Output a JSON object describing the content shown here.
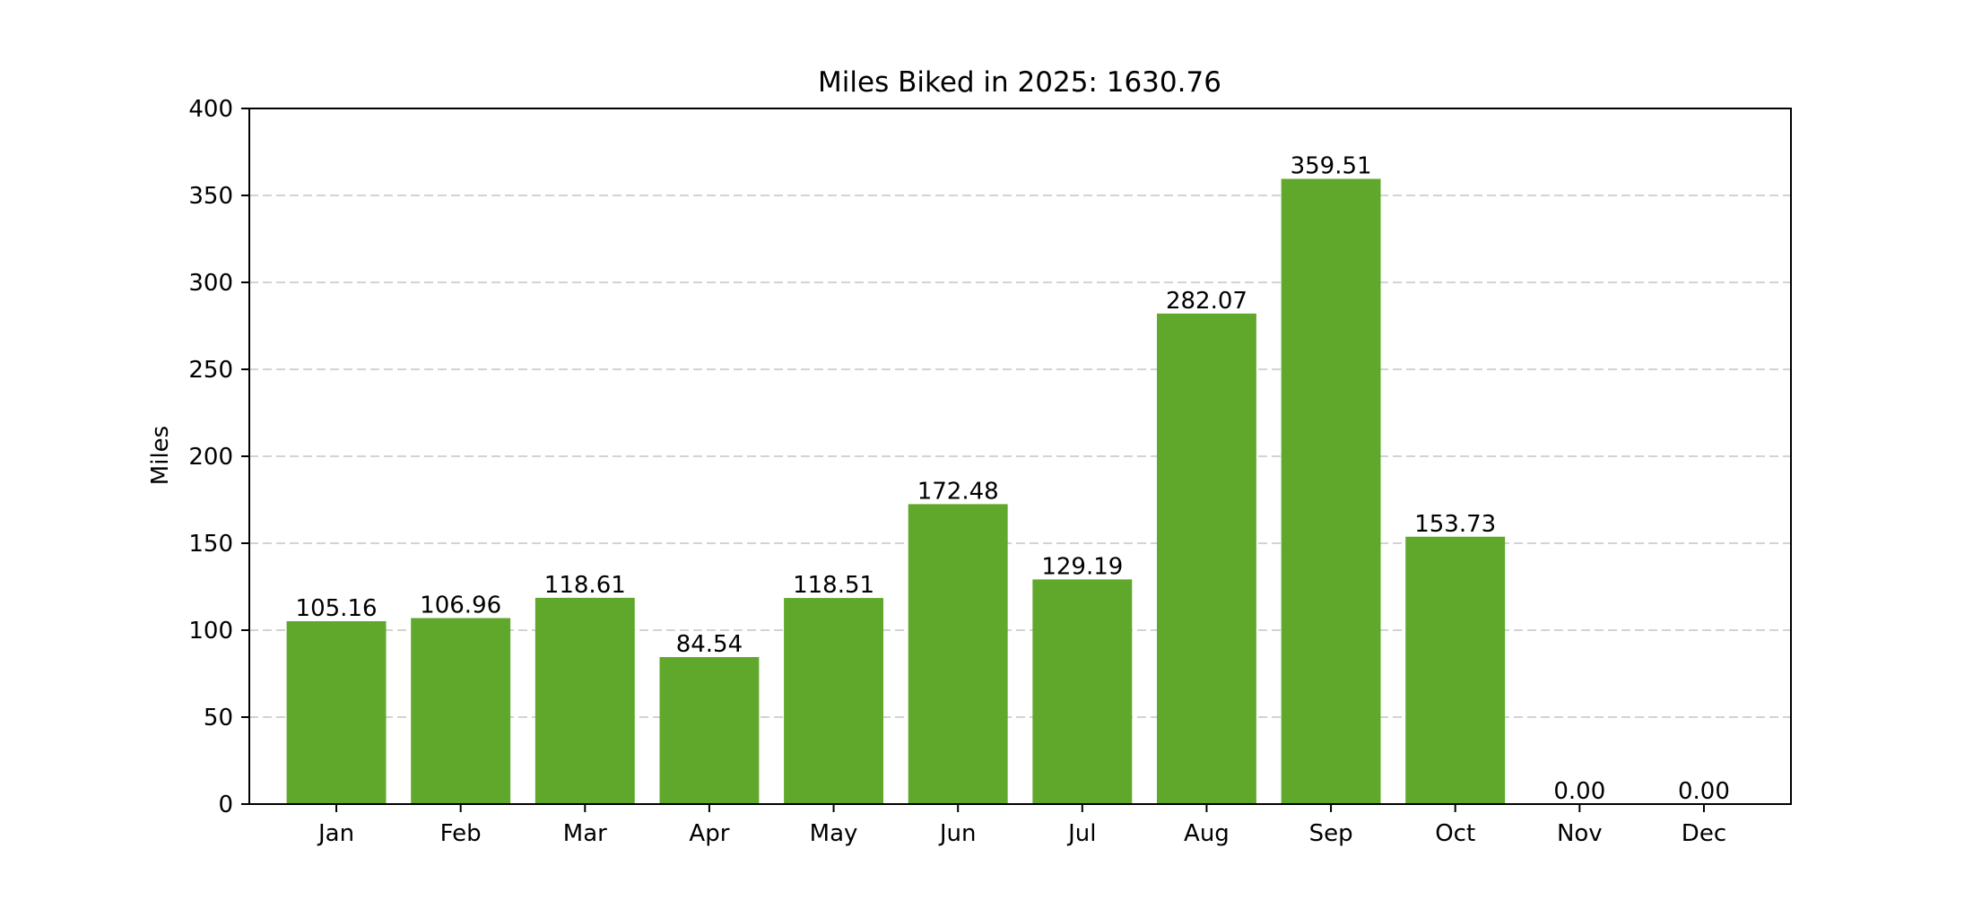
{
  "chart_data": {
    "type": "bar",
    "title": "Miles Biked in 2025: 1630.76",
    "xlabel": "",
    "ylabel": "Miles",
    "categories": [
      "Jan",
      "Feb",
      "Mar",
      "Apr",
      "May",
      "Jun",
      "Jul",
      "Aug",
      "Sep",
      "Oct",
      "Nov",
      "Dec"
    ],
    "values": [
      105.16,
      106.96,
      118.61,
      84.54,
      118.51,
      172.48,
      129.19,
      282.07,
      359.51,
      153.73,
      0.0,
      0.0
    ],
    "data_labels": [
      "105.16",
      "106.96",
      "118.61",
      "84.54",
      "118.51",
      "172.48",
      "129.19",
      "282.07",
      "359.51",
      "153.73",
      "0.00",
      "0.00"
    ],
    "ylim": [
      0,
      400
    ],
    "yticks": [
      0,
      50,
      100,
      150,
      200,
      250,
      300,
      350,
      400
    ],
    "grid": "y-dashed",
    "legend": "none",
    "colors": {
      "bar": "#5fa82b",
      "grid": "#d3d3d3",
      "axis": "#000000"
    }
  }
}
